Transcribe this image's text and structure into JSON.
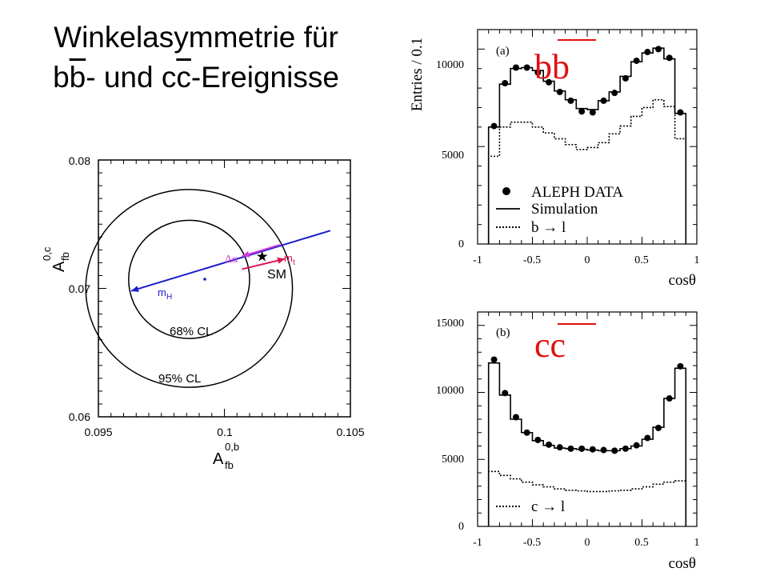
{
  "title": {
    "line1": "Winkelasymmetrie für",
    "line2_a": "b",
    "line2_b": "b",
    "line2_c": "- und c",
    "line2_d": "c",
    "line2_e": "-Ereignisse"
  },
  "chart_data": [
    {
      "type": "scatter",
      "xlabel": "A_fb^0,b",
      "ylabel": "A_fb^0,c",
      "xlim": [
        0.095,
        0.105
      ],
      "ylim": [
        0.06,
        0.08
      ],
      "x_ticks": [
        "0.095",
        "0.1",
        "0.105"
      ],
      "y_ticks": [
        "0.06",
        "0.07",
        "0.08"
      ],
      "contours": [
        {
          "label": "68% CL",
          "center": [
            0.0986,
            0.0707
          ],
          "semi_axis_x": 0.0024,
          "semi_axis_y": 0.0046
        },
        {
          "label": "95% CL",
          "center": [
            0.0986,
            0.07
          ],
          "semi_axis_x": 0.0041,
          "semi_axis_y": 0.0077
        }
      ],
      "sm_point": {
        "label": "SM",
        "x": 0.1015,
        "y": 0.0725
      },
      "annotations": {
        "mH": "m",
        "mH_sub": "H",
        "mt": "m",
        "mt_sub": "t",
        "dalpha": "Δα"
      },
      "mH_line": {
        "from": [
          0.1042,
          0.0745
        ],
        "to": [
          0.0963,
          0.0698
        ]
      },
      "mt_segment": {
        "from": [
          0.1007,
          0.0715
        ],
        "to": [
          0.1024,
          0.0723
        ]
      },
      "dalpha_segment": {
        "from": [
          0.1007,
          0.0725
        ],
        "to": [
          0.1022,
          0.0734
        ]
      }
    },
    {
      "type": "bar",
      "panel": "(a)",
      "big_label": "bb",
      "ylabel": "Entries / 0.1",
      "xlabel": "cosθ",
      "xlim": [
        -1,
        1
      ],
      "ylim": [
        0,
        11000
      ],
      "x_ticks": [
        "-1",
        "-0.5",
        "0",
        "0.5",
        "1"
      ],
      "y_ticks": [
        "0",
        "5000",
        "10000"
      ],
      "bin_edges": [
        -0.9,
        -0.8,
        -0.7,
        -0.6,
        -0.5,
        -0.4,
        -0.3,
        -0.2,
        -0.1,
        0.0,
        0.1,
        0.2,
        0.3,
        0.4,
        0.5,
        0.6,
        0.7,
        0.8,
        0.9
      ],
      "series": [
        {
          "name": "ALEPH DATA",
          "style": "points",
          "values": [
            6050,
            8250,
            9050,
            9050,
            8800,
            8300,
            7800,
            7350,
            6800,
            6750,
            7350,
            7750,
            8500,
            9400,
            9850,
            10000,
            9550,
            6750
          ]
        },
        {
          "name": "Simulation",
          "style": "solid-step",
          "values": [
            6000,
            8200,
            9000,
            9050,
            8900,
            8350,
            7850,
            7400,
            6950,
            6900,
            7350,
            7800,
            8600,
            9350,
            9800,
            10050,
            9500,
            6700
          ]
        },
        {
          "name": "b → l",
          "style": "dotted-step",
          "values": [
            4500,
            6000,
            6250,
            6250,
            6000,
            5700,
            5400,
            5100,
            4850,
            4950,
            5200,
            5650,
            6050,
            6550,
            7000,
            7400,
            7050,
            5400
          ]
        }
      ],
      "legend": [
        "ALEPH DATA",
        "Simulation",
        "b → l"
      ]
    },
    {
      "type": "bar",
      "panel": "(b)",
      "big_label": "cc",
      "xlabel": "cosθ",
      "xlim": [
        -1,
        1
      ],
      "ylim": [
        0,
        16000
      ],
      "x_ticks": [
        "-1",
        "-0.5",
        "0",
        "0.5",
        "1"
      ],
      "y_ticks": [
        "0",
        "5000",
        "10000",
        "15000"
      ],
      "bin_edges": [
        -0.9,
        -0.8,
        -0.7,
        -0.6,
        -0.5,
        -0.4,
        -0.3,
        -0.2,
        -0.1,
        0.0,
        0.1,
        0.2,
        0.3,
        0.4,
        0.5,
        0.6,
        0.7,
        0.8,
        0.9
      ],
      "series": [
        {
          "name": "ALEPH DATA",
          "style": "points",
          "values": [
            12450,
            9950,
            8150,
            7000,
            6450,
            6100,
            5900,
            5800,
            5800,
            5750,
            5700,
            5650,
            5800,
            6050,
            6600,
            7350,
            9550,
            11950
          ]
        },
        {
          "name": "Simulation",
          "style": "solid-step",
          "values": [
            12200,
            9800,
            8000,
            7000,
            6400,
            6050,
            5850,
            5800,
            5750,
            5700,
            5650,
            5650,
            5800,
            6000,
            6500,
            7400,
            9550,
            11800
          ]
        },
        {
          "name": "c → l",
          "style": "dotted-step",
          "values": [
            4100,
            3800,
            3550,
            3300,
            3100,
            2950,
            2800,
            2700,
            2650,
            2600,
            2600,
            2650,
            2700,
            2800,
            2950,
            3150,
            3300,
            3400
          ]
        }
      ],
      "legend": [
        "c → l"
      ]
    }
  ]
}
